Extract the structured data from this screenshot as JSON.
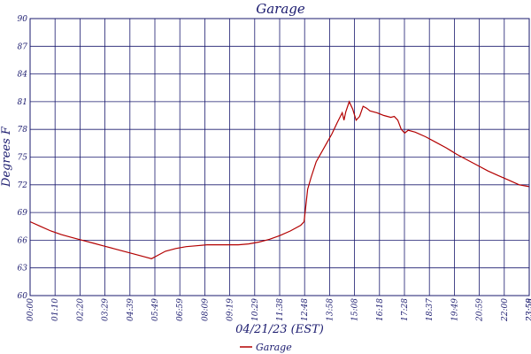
{
  "chart_data": {
    "type": "line",
    "title": "Garage",
    "xlabel": "04/21/23 (EST)",
    "ylabel": "Degrees F",
    "ylim": [
      60,
      90
    ],
    "yticks": [
      60,
      63,
      66,
      69,
      72,
      75,
      78,
      81,
      84,
      87,
      90
    ],
    "ytick_labels": [
      "60",
      "63",
      "66",
      "69",
      "72",
      "75",
      "78",
      "81",
      "84",
      "87",
      "90"
    ],
    "xtick_labels": [
      "00:00",
      "01:10",
      "02:20",
      "03:29",
      "04:39",
      "05:49",
      "06:59",
      "08:09",
      "09:19",
      "10:29",
      "11:38",
      "12:48",
      "13:58",
      "15:08",
      "16:18",
      "17:28",
      "18:37",
      "19:49",
      "20:59",
      "22:00",
      "23:58",
      "23:59"
    ],
    "xlim": [
      "00:00",
      "23:59"
    ],
    "grid": true,
    "legend_position": "bottom",
    "colors": {
      "line": "#b30000",
      "grid": "#1a1a6e",
      "text": "#1a1a6e"
    },
    "series": [
      {
        "name": "Garage",
        "x": [
          "00:00",
          "00:30",
          "01:00",
          "01:30",
          "02:00",
          "02:30",
          "03:00",
          "03:30",
          "04:00",
          "04:30",
          "05:00",
          "05:30",
          "05:50",
          "06:10",
          "06:30",
          "07:00",
          "07:30",
          "08:00",
          "08:30",
          "09:00",
          "09:30",
          "10:00",
          "10:30",
          "11:00",
          "11:30",
          "12:00",
          "12:30",
          "13:00",
          "13:10",
          "13:20",
          "13:30",
          "13:45",
          "14:00",
          "14:15",
          "14:30",
          "14:45",
          "15:00",
          "15:05",
          "15:10",
          "15:20",
          "15:30",
          "15:40",
          "15:50",
          "16:00",
          "16:10",
          "16:20",
          "16:40",
          "17:00",
          "17:20",
          "17:30",
          "17:40",
          "17:50",
          "18:00",
          "18:10",
          "18:30",
          "19:00",
          "19:30",
          "20:00",
          "20:30",
          "21:00",
          "21:30",
          "22:00",
          "22:30",
          "23:00",
          "23:30",
          "23:59"
        ],
        "values": [
          68.0,
          67.5,
          67.0,
          66.6,
          66.3,
          66.0,
          65.7,
          65.4,
          65.1,
          64.8,
          64.5,
          64.2,
          64.0,
          64.4,
          64.8,
          65.1,
          65.3,
          65.4,
          65.5,
          65.5,
          65.5,
          65.5,
          65.6,
          65.8,
          66.1,
          66.5,
          67.0,
          67.6,
          68.0,
          71.5,
          72.8,
          74.5,
          75.5,
          76.5,
          77.5,
          78.7,
          79.8,
          79.0,
          79.9,
          81.0,
          80.2,
          79.0,
          79.4,
          80.5,
          80.3,
          80.0,
          79.8,
          79.5,
          79.3,
          79.4,
          79.0,
          78.0,
          77.6,
          77.9,
          77.7,
          77.2,
          76.6,
          76.0,
          75.3,
          74.7,
          74.1,
          73.5,
          73.0,
          72.5,
          72.0,
          71.8
        ]
      }
    ]
  }
}
